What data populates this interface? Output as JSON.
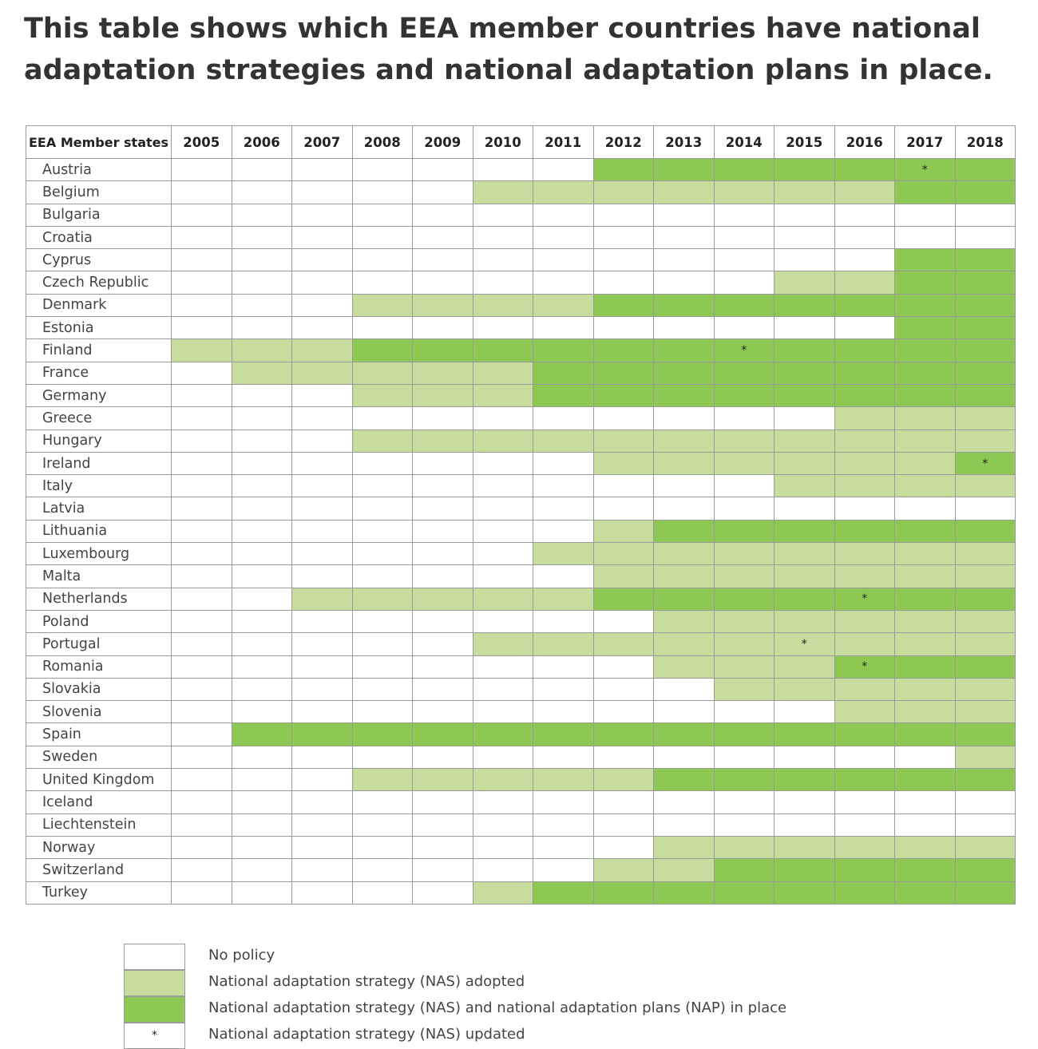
{
  "heading": "This table shows which EEA member countries have national adaptation strategies and national adaptation plans in place.",
  "table": {
    "country_header": "EEA Member states",
    "years": [
      "2005",
      "2006",
      "2007",
      "2008",
      "2009",
      "2010",
      "2011",
      "2012",
      "2013",
      "2014",
      "2015",
      "2016",
      "2017",
      "2018"
    ],
    "rows": [
      {
        "country": "Austria",
        "status": [
          0,
          0,
          0,
          0,
          0,
          0,
          0,
          2,
          2,
          2,
          2,
          2,
          2,
          2
        ],
        "updated": [
          "",
          "",
          "",
          "",
          "",
          "",
          "",
          "",
          "",
          "",
          "",
          "",
          "*",
          ""
        ]
      },
      {
        "country": "Belgium",
        "status": [
          0,
          0,
          0,
          0,
          0,
          1,
          1,
          1,
          1,
          1,
          1,
          1,
          2,
          2
        ],
        "updated": [
          "",
          "",
          "",
          "",
          "",
          "",
          "",
          "",
          "",
          "",
          "",
          "",
          "",
          ""
        ]
      },
      {
        "country": "Bulgaria",
        "status": [
          0,
          0,
          0,
          0,
          0,
          0,
          0,
          0,
          0,
          0,
          0,
          0,
          0,
          0
        ],
        "updated": [
          "",
          "",
          "",
          "",
          "",
          "",
          "",
          "",
          "",
          "",
          "",
          "",
          "",
          ""
        ]
      },
      {
        "country": "Croatia",
        "status": [
          0,
          0,
          0,
          0,
          0,
          0,
          0,
          0,
          0,
          0,
          0,
          0,
          0,
          0
        ],
        "updated": [
          "",
          "",
          "",
          "",
          "",
          "",
          "",
          "",
          "",
          "",
          "",
          "",
          "",
          ""
        ]
      },
      {
        "country": "Cyprus",
        "status": [
          0,
          0,
          0,
          0,
          0,
          0,
          0,
          0,
          0,
          0,
          0,
          0,
          2,
          2
        ],
        "updated": [
          "",
          "",
          "",
          "",
          "",
          "",
          "",
          "",
          "",
          "",
          "",
          "",
          "",
          ""
        ]
      },
      {
        "country": "Czech Republic",
        "status": [
          0,
          0,
          0,
          0,
          0,
          0,
          0,
          0,
          0,
          0,
          1,
          1,
          2,
          2
        ],
        "updated": [
          "",
          "",
          "",
          "",
          "",
          "",
          "",
          "",
          "",
          "",
          "",
          "",
          "",
          ""
        ]
      },
      {
        "country": "Denmark",
        "status": [
          0,
          0,
          0,
          1,
          1,
          1,
          1,
          2,
          2,
          2,
          2,
          2,
          2,
          2
        ],
        "updated": [
          "",
          "",
          "",
          "",
          "",
          "",
          "",
          "",
          "",
          "",
          "",
          "",
          "",
          ""
        ]
      },
      {
        "country": "Estonia",
        "status": [
          0,
          0,
          0,
          0,
          0,
          0,
          0,
          0,
          0,
          0,
          0,
          0,
          2,
          2
        ],
        "updated": [
          "",
          "",
          "",
          "",
          "",
          "",
          "",
          "",
          "",
          "",
          "",
          "",
          "",
          ""
        ]
      },
      {
        "country": "Finland",
        "status": [
          1,
          1,
          1,
          2,
          2,
          2,
          2,
          2,
          2,
          2,
          2,
          2,
          2,
          2
        ],
        "updated": [
          "",
          "",
          "",
          "",
          "",
          "",
          "",
          "",
          "",
          "*",
          "",
          "",
          "",
          ""
        ]
      },
      {
        "country": "France",
        "status": [
          0,
          1,
          1,
          1,
          1,
          1,
          2,
          2,
          2,
          2,
          2,
          2,
          2,
          2
        ],
        "updated": [
          "",
          "",
          "",
          "",
          "",
          "",
          "",
          "",
          "",
          "",
          "",
          "",
          "",
          ""
        ]
      },
      {
        "country": "Germany",
        "status": [
          0,
          0,
          0,
          1,
          1,
          1,
          2,
          2,
          2,
          2,
          2,
          2,
          2,
          2
        ],
        "updated": [
          "",
          "",
          "",
          "",
          "",
          "",
          "",
          "",
          "",
          "",
          "",
          "",
          "",
          ""
        ]
      },
      {
        "country": "Greece",
        "status": [
          0,
          0,
          0,
          0,
          0,
          0,
          0,
          0,
          0,
          0,
          0,
          1,
          1,
          1
        ],
        "updated": [
          "",
          "",
          "",
          "",
          "",
          "",
          "",
          "",
          "",
          "",
          "",
          "",
          "",
          ""
        ]
      },
      {
        "country": "Hungary",
        "status": [
          0,
          0,
          0,
          1,
          1,
          1,
          1,
          1,
          1,
          1,
          1,
          1,
          1,
          1
        ],
        "updated": [
          "",
          "",
          "",
          "",
          "",
          "",
          "",
          "",
          "",
          "",
          "",
          "",
          "",
          ""
        ]
      },
      {
        "country": "Ireland",
        "status": [
          0,
          0,
          0,
          0,
          0,
          0,
          0,
          1,
          1,
          1,
          1,
          1,
          1,
          2
        ],
        "updated": [
          "",
          "",
          "",
          "",
          "",
          "",
          "",
          "",
          "",
          "",
          "",
          "",
          "",
          "*"
        ]
      },
      {
        "country": "Italy",
        "status": [
          0,
          0,
          0,
          0,
          0,
          0,
          0,
          0,
          0,
          0,
          1,
          1,
          1,
          1
        ],
        "updated": [
          "",
          "",
          "",
          "",
          "",
          "",
          "",
          "",
          "",
          "",
          "",
          "",
          "",
          ""
        ]
      },
      {
        "country": "Latvia",
        "status": [
          0,
          0,
          0,
          0,
          0,
          0,
          0,
          0,
          0,
          0,
          0,
          0,
          0,
          0
        ],
        "updated": [
          "",
          "",
          "",
          "",
          "",
          "",
          "",
          "",
          "",
          "",
          "",
          "",
          "",
          ""
        ]
      },
      {
        "country": "Lithuania",
        "status": [
          0,
          0,
          0,
          0,
          0,
          0,
          0,
          1,
          2,
          2,
          2,
          2,
          2,
          2
        ],
        "updated": [
          "",
          "",
          "",
          "",
          "",
          "",
          "",
          "",
          "",
          "",
          "",
          "",
          "",
          ""
        ]
      },
      {
        "country": "Luxembourg",
        "status": [
          0,
          0,
          0,
          0,
          0,
          0,
          1,
          1,
          1,
          1,
          1,
          1,
          1,
          1
        ],
        "updated": [
          "",
          "",
          "",
          "",
          "",
          "",
          "",
          "",
          "",
          "",
          "",
          "",
          "",
          ""
        ]
      },
      {
        "country": "Malta",
        "status": [
          0,
          0,
          0,
          0,
          0,
          0,
          0,
          1,
          1,
          1,
          1,
          1,
          1,
          1
        ],
        "updated": [
          "",
          "",
          "",
          "",
          "",
          "",
          "",
          "",
          "",
          "",
          "",
          "",
          "",
          ""
        ]
      },
      {
        "country": "Netherlands",
        "status": [
          0,
          0,
          1,
          1,
          1,
          1,
          1,
          2,
          2,
          2,
          2,
          2,
          2,
          2
        ],
        "updated": [
          "",
          "",
          "",
          "",
          "",
          "",
          "",
          "",
          "",
          "",
          "",
          "*",
          "",
          ""
        ]
      },
      {
        "country": "Poland",
        "status": [
          0,
          0,
          0,
          0,
          0,
          0,
          0,
          0,
          1,
          1,
          1,
          1,
          1,
          1
        ],
        "updated": [
          "",
          "",
          "",
          "",
          "",
          "",
          "",
          "",
          "",
          "",
          "",
          "",
          "",
          ""
        ]
      },
      {
        "country": "Portugal",
        "status": [
          0,
          0,
          0,
          0,
          0,
          1,
          1,
          1,
          1,
          1,
          1,
          1,
          1,
          1
        ],
        "updated": [
          "",
          "",
          "",
          "",
          "",
          "",
          "",
          "",
          "",
          "",
          "*",
          "",
          "",
          ""
        ]
      },
      {
        "country": "Romania",
        "status": [
          0,
          0,
          0,
          0,
          0,
          0,
          0,
          0,
          1,
          1,
          1,
          2,
          2,
          2
        ],
        "updated": [
          "",
          "",
          "",
          "",
          "",
          "",
          "",
          "",
          "",
          "",
          "",
          "*",
          "",
          ""
        ]
      },
      {
        "country": "Slovakia",
        "status": [
          0,
          0,
          0,
          0,
          0,
          0,
          0,
          0,
          0,
          1,
          1,
          1,
          1,
          1
        ],
        "updated": [
          "",
          "",
          "",
          "",
          "",
          "",
          "",
          "",
          "",
          "",
          "",
          "",
          "",
          ""
        ]
      },
      {
        "country": "Slovenia",
        "status": [
          0,
          0,
          0,
          0,
          0,
          0,
          0,
          0,
          0,
          0,
          0,
          1,
          1,
          1
        ],
        "updated": [
          "",
          "",
          "",
          "",
          "",
          "",
          "",
          "",
          "",
          "",
          "",
          "",
          "",
          ""
        ]
      },
      {
        "country": "Spain",
        "status": [
          0,
          2,
          2,
          2,
          2,
          2,
          2,
          2,
          2,
          2,
          2,
          2,
          2,
          2
        ],
        "updated": [
          "",
          "",
          "",
          "",
          "",
          "",
          "",
          "",
          "",
          "",
          "",
          "",
          "",
          ""
        ]
      },
      {
        "country": "Sweden",
        "status": [
          0,
          0,
          0,
          0,
          0,
          0,
          0,
          0,
          0,
          0,
          0,
          0,
          0,
          1
        ],
        "updated": [
          "",
          "",
          "",
          "",
          "",
          "",
          "",
          "",
          "",
          "",
          "",
          "",
          "",
          ""
        ]
      },
      {
        "country": "United Kingdom",
        "status": [
          0,
          0,
          0,
          1,
          1,
          1,
          1,
          1,
          2,
          2,
          2,
          2,
          2,
          2
        ],
        "updated": [
          "",
          "",
          "",
          "",
          "",
          "",
          "",
          "",
          "",
          "",
          "",
          "",
          "",
          ""
        ]
      },
      {
        "country": "Iceland",
        "status": [
          0,
          0,
          0,
          0,
          0,
          0,
          0,
          0,
          0,
          0,
          0,
          0,
          0,
          0
        ],
        "updated": [
          "",
          "",
          "",
          "",
          "",
          "",
          "",
          "",
          "",
          "",
          "",
          "",
          "",
          ""
        ]
      },
      {
        "country": "Liechtenstein",
        "status": [
          0,
          0,
          0,
          0,
          0,
          0,
          0,
          0,
          0,
          0,
          0,
          0,
          0,
          0
        ],
        "updated": [
          "",
          "",
          "",
          "",
          "",
          "",
          "",
          "",
          "",
          "",
          "",
          "",
          "",
          ""
        ]
      },
      {
        "country": "Norway",
        "status": [
          0,
          0,
          0,
          0,
          0,
          0,
          0,
          0,
          1,
          1,
          1,
          1,
          1,
          1
        ],
        "updated": [
          "",
          "",
          "",
          "",
          "",
          "",
          "",
          "",
          "",
          "",
          "",
          "",
          "",
          ""
        ]
      },
      {
        "country": "Switzerland",
        "status": [
          0,
          0,
          0,
          0,
          0,
          0,
          0,
          1,
          1,
          2,
          2,
          2,
          2,
          2
        ],
        "updated": [
          "",
          "",
          "",
          "",
          "",
          "",
          "",
          "",
          "",
          "",
          "",
          "",
          "",
          ""
        ]
      },
      {
        "country": "Turkey",
        "status": [
          0,
          0,
          0,
          0,
          0,
          1,
          2,
          2,
          2,
          2,
          2,
          2,
          2,
          2
        ],
        "updated": [
          "",
          "",
          "",
          "",
          "",
          "",
          "",
          "",
          "",
          "",
          "",
          "",
          "",
          ""
        ]
      }
    ]
  },
  "colors": {
    "no_policy": "#ffffff",
    "nas_adopted": "#c6dd9e",
    "nas_and_nap": "#8dc952"
  },
  "legend": [
    {
      "swatch": "",
      "level": 0,
      "label": "No policy"
    },
    {
      "swatch": "",
      "level": 1,
      "label": "National adaptation strategy (NAS) adopted"
    },
    {
      "swatch": "",
      "level": 2,
      "label": "National adaptation strategy (NAS) and national adaptation plans (NAP) in place"
    },
    {
      "swatch": "*",
      "level": 0,
      "label": "National adaptation strategy (NAS) updated"
    }
  ]
}
